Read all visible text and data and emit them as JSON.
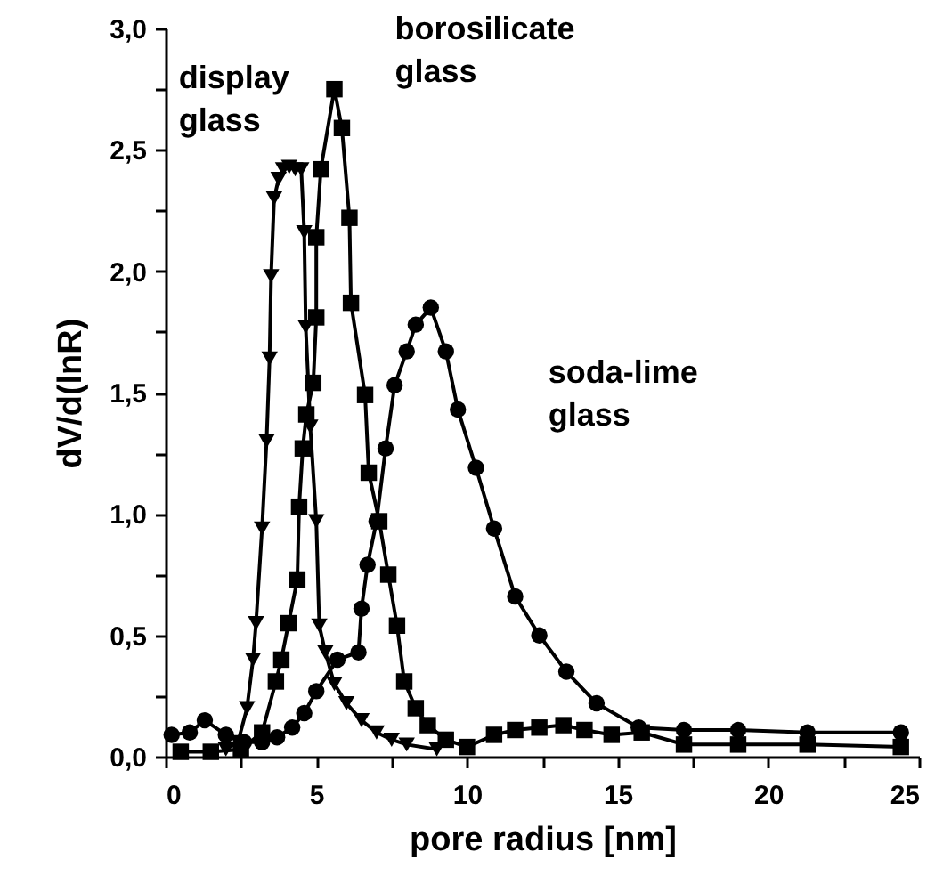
{
  "chart_data": {
    "type": "line",
    "xlabel": "pore radius [nm]",
    "ylabel": "dV/d(lnR)",
    "xlim": [
      0,
      25
    ],
    "ylim": [
      0,
      3
    ],
    "xticks": [
      0,
      {
        "value": 2.5,
        "label": null
      },
      5,
      {
        "value": 7.5,
        "label": null
      },
      10,
      {
        "value": 12.5,
        "label": null
      },
      15,
      {
        "value": 17.5,
        "label": null
      },
      20,
      {
        "value": 22.5,
        "label": null
      },
      25
    ],
    "yticks": [
      {
        "value": 0,
        "label": "0,0"
      },
      {
        "value": 0.25,
        "label": null
      },
      {
        "value": 0.5,
        "label": "0,5"
      },
      {
        "value": 0.75,
        "label": null
      },
      {
        "value": 1,
        "label": "1,0"
      },
      {
        "value": 1.25,
        "label": null
      },
      {
        "value": 1.5,
        "label": "1,5"
      },
      {
        "value": 1.75,
        "label": null
      },
      {
        "value": 2,
        "label": "2,0"
      },
      {
        "value": 2.25,
        "label": null
      },
      {
        "value": 2.5,
        "label": "2,5"
      },
      {
        "value": 2.75,
        "label": null
      },
      {
        "value": 3,
        "label": "3,0"
      }
    ],
    "grid": false,
    "line_style": "solid",
    "series": [
      {
        "name": "display glass",
        "color": "#000000",
        "marker": "triangle",
        "x": [
          2.0,
          2.4,
          2.7,
          2.9,
          3.0,
          3.2,
          3.35,
          3.45,
          3.5,
          3.6,
          3.75,
          3.9,
          4.1,
          4.3,
          4.5,
          4.6,
          4.65,
          4.8,
          5.0,
          5.1,
          5.3,
          5.6,
          6.0,
          6.5,
          7.0,
          7.5,
          8.0,
          9.0
        ],
        "values": [
          0.03,
          0.06,
          0.2,
          0.4,
          0.55,
          0.94,
          1.3,
          1.64,
          1.98,
          2.3,
          2.38,
          2.42,
          2.43,
          2.42,
          2.42,
          2.16,
          1.77,
          1.36,
          0.97,
          0.54,
          0.43,
          0.3,
          0.22,
          0.15,
          0.1,
          0.07,
          0.05,
          0.03
        ]
      },
      {
        "name": "borosilicate glass",
        "color": "#000000",
        "marker": "square",
        "x": [
          0.5,
          1.5,
          2.5,
          3.2,
          3.66,
          3.84,
          4.08,
          4.37,
          4.43,
          4.55,
          4.67,
          4.9,
          5.0,
          5.0,
          5.15,
          5.6,
          5.85,
          6.1,
          6.15,
          6.62,
          6.74,
          7.09,
          7.39,
          7.68,
          7.92,
          8.3,
          8.7,
          9.3,
          10.0,
          10.9,
          11.6,
          12.4,
          13.2,
          13.9,
          14.8,
          15.8,
          17.2,
          19.0,
          21.3,
          24.4
        ],
        "values": [
          0.02,
          0.02,
          0.03,
          0.1,
          0.31,
          0.4,
          0.55,
          0.73,
          1.03,
          1.27,
          1.41,
          1.54,
          1.81,
          2.14,
          2.42,
          2.75,
          2.59,
          2.22,
          1.87,
          1.49,
          1.17,
          0.97,
          0.75,
          0.54,
          0.31,
          0.2,
          0.13,
          0.07,
          0.04,
          0.09,
          0.11,
          0.12,
          0.13,
          0.11,
          0.09,
          0.1,
          0.05,
          0.05,
          0.05,
          0.04
        ]
      },
      {
        "name": "soda-lime glass",
        "color": "#000000",
        "marker": "circle",
        "x": [
          0.2,
          0.8,
          1.3,
          2.0,
          2.6,
          3.2,
          3.7,
          4.2,
          4.6,
          5.0,
          5.7,
          6.4,
          6.5,
          6.7,
          7.0,
          7.3,
          7.6,
          8.0,
          8.3,
          8.8,
          9.3,
          9.7,
          10.3,
          10.9,
          11.6,
          12.4,
          13.3,
          14.3,
          15.7,
          17.2,
          19.0,
          21.3,
          24.4
        ],
        "values": [
          0.09,
          0.1,
          0.15,
          0.09,
          0.06,
          0.06,
          0.08,
          0.12,
          0.18,
          0.27,
          0.4,
          0.43,
          0.61,
          0.79,
          0.97,
          1.27,
          1.53,
          1.67,
          1.78,
          1.85,
          1.67,
          1.43,
          1.19,
          0.94,
          0.66,
          0.5,
          0.35,
          0.22,
          0.12,
          0.11,
          0.11,
          0.1,
          0.1
        ]
      }
    ]
  }
}
